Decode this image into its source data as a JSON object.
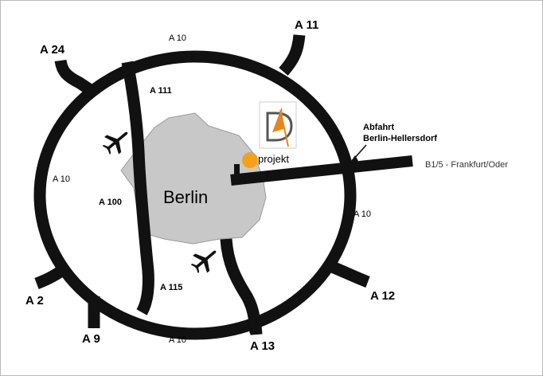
{
  "map": {
    "city": "Berlin",
    "ring_labels": [
      "A 10",
      "A 10",
      "A 10",
      "A 10"
    ],
    "exits": {
      "a24": "A 24",
      "a11": "A 11",
      "a2": "A 2",
      "a9": "A 9",
      "a13": "A 13",
      "a12": "A 12"
    },
    "inner_roads": {
      "a111": "A 111",
      "a100": "A 100",
      "a115": "A 115"
    },
    "exit_note": {
      "line1": "Abfahrt",
      "line2": "Berlin-Hellersdorf"
    },
    "road_label": "B1/5 - Frankfurt/Oder",
    "logo": {
      "letters": "DP",
      "word": "projekt"
    },
    "colors": {
      "road": "#111111",
      "city_fill": "#c8c8c8",
      "marker": "#f5a01a"
    },
    "icons": [
      "airplane-icon",
      "airplane-icon",
      "location-marker-icon"
    ]
  }
}
